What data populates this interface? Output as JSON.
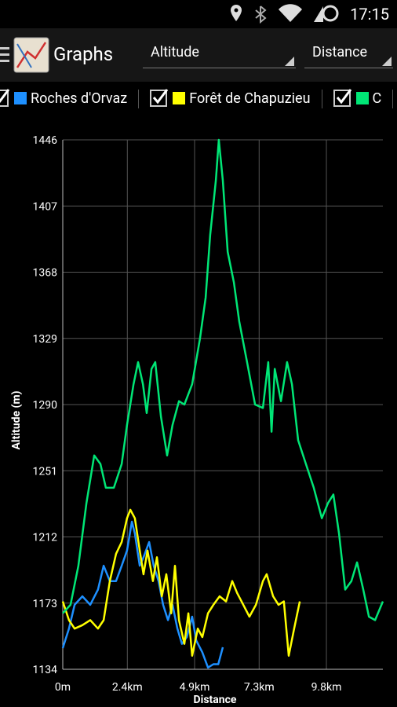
{
  "status_bar": {
    "time": "17:15"
  },
  "toolbar": {
    "title": "Graphs",
    "spinners": [
      "Altitude",
      "Distance"
    ]
  },
  "chart_data": {
    "type": "line",
    "x_label": "Distance",
    "y_label": "Altitude (m)",
    "xlim": [
      0,
      11.9
    ],
    "xticks": [
      {
        "value": 0,
        "label": "0m"
      },
      {
        "value": 2.4,
        "label": "2.4km"
      },
      {
        "value": 4.9,
        "label": "4.9km"
      },
      {
        "value": 7.3,
        "label": "7.3km"
      },
      {
        "value": 9.8,
        "label": "9.8km"
      }
    ],
    "ylim": [
      1134,
      1446
    ],
    "yticks": [
      1134,
      1173,
      1212,
      1251,
      1290,
      1329,
      1368,
      1407,
      1446
    ],
    "grid": true,
    "series": [
      {
        "name": "Roches d'Orvaz",
        "color": "#1e90ff",
        "x": [
          0,
          0.23,
          0.44,
          0.73,
          1.02,
          1.31,
          1.52,
          1.75,
          1.98,
          2.19,
          2.39,
          2.57,
          2.68,
          2.86,
          3.0,
          3.21,
          3.38,
          3.56,
          3.73,
          3.91,
          4.08,
          4.26,
          4.43,
          4.61,
          4.81,
          4.96,
          5.19,
          5.4,
          5.6,
          5.78,
          5.95
        ],
        "values": [
          1146.5,
          1158,
          1172,
          1177,
          1172,
          1181,
          1195,
          1186,
          1186,
          1195,
          1204,
          1221,
          1214,
          1195,
          1200,
          1209,
          1195,
          1186,
          1172,
          1163,
          1172,
          1158,
          1149,
          1153,
          1165,
          1151,
          1144,
          1135,
          1137,
          1137,
          1147
        ]
      },
      {
        "name": "Forêt de Chapuzieu",
        "color": "#ffff00",
        "x": [
          0,
          0.23,
          0.44,
          0.73,
          1.02,
          1.31,
          1.52,
          1.75,
          1.98,
          2.19,
          2.39,
          2.51,
          2.68,
          2.86,
          3.0,
          3.15,
          3.35,
          3.5,
          3.68,
          3.85,
          4.03,
          4.17,
          4.32,
          4.52,
          4.67,
          4.81,
          5.02,
          5.19,
          5.4,
          5.6,
          5.83,
          6.07,
          6.3,
          6.48,
          6.71,
          6.94,
          7.18,
          7.44,
          7.58,
          7.82,
          8.02,
          8.22,
          8.4,
          8.6,
          8.81
        ],
        "values": [
          1174,
          1163,
          1158,
          1160,
          1163,
          1158,
          1163,
          1186,
          1202,
          1209,
          1223,
          1228,
          1223,
          1204,
          1190,
          1204,
          1186,
          1200,
          1177,
          1190,
          1167,
          1195,
          1163,
          1149,
          1167,
          1142,
          1158,
          1153,
          1167,
          1172,
          1177,
          1174,
          1186,
          1179,
          1172,
          1165,
          1172,
          1186,
          1190,
          1177,
          1172,
          1174,
          1142,
          1158,
          1174
        ]
      },
      {
        "name": "C",
        "color": "#00e676",
        "x": [
          0,
          0.29,
          0.58,
          0.88,
          1.17,
          1.4,
          1.6,
          1.9,
          2.19,
          2.39,
          2.63,
          2.8,
          2.98,
          3.12,
          3.3,
          3.44,
          3.65,
          3.88,
          4.08,
          4.32,
          4.52,
          4.81,
          5.1,
          5.31,
          5.48,
          5.69,
          5.8,
          5.95,
          6.13,
          6.36,
          6.56,
          6.85,
          7.15,
          7.44,
          7.64,
          7.76,
          7.88,
          8.11,
          8.34,
          8.52,
          8.75,
          9.04,
          9.33,
          9.63,
          9.86,
          10.06,
          10.27,
          10.5,
          10.73,
          10.94,
          11.17,
          11.38,
          11.61,
          11.9
        ],
        "values": [
          1167,
          1172,
          1195,
          1232,
          1260,
          1255,
          1241,
          1241,
          1255,
          1278,
          1302,
          1315,
          1302,
          1285,
          1311,
          1315,
          1283,
          1260,
          1278,
          1292,
          1290,
          1302,
          1329,
          1353,
          1390,
          1422,
          1446,
          1422,
          1380,
          1362,
          1339,
          1315,
          1290,
          1288,
          1315,
          1274,
          1311,
          1292,
          1315,
          1302,
          1269,
          1255,
          1241,
          1223,
          1232,
          1237,
          1214,
          1181,
          1186,
          1197,
          1181,
          1165,
          1163,
          1174
        ]
      }
    ]
  }
}
